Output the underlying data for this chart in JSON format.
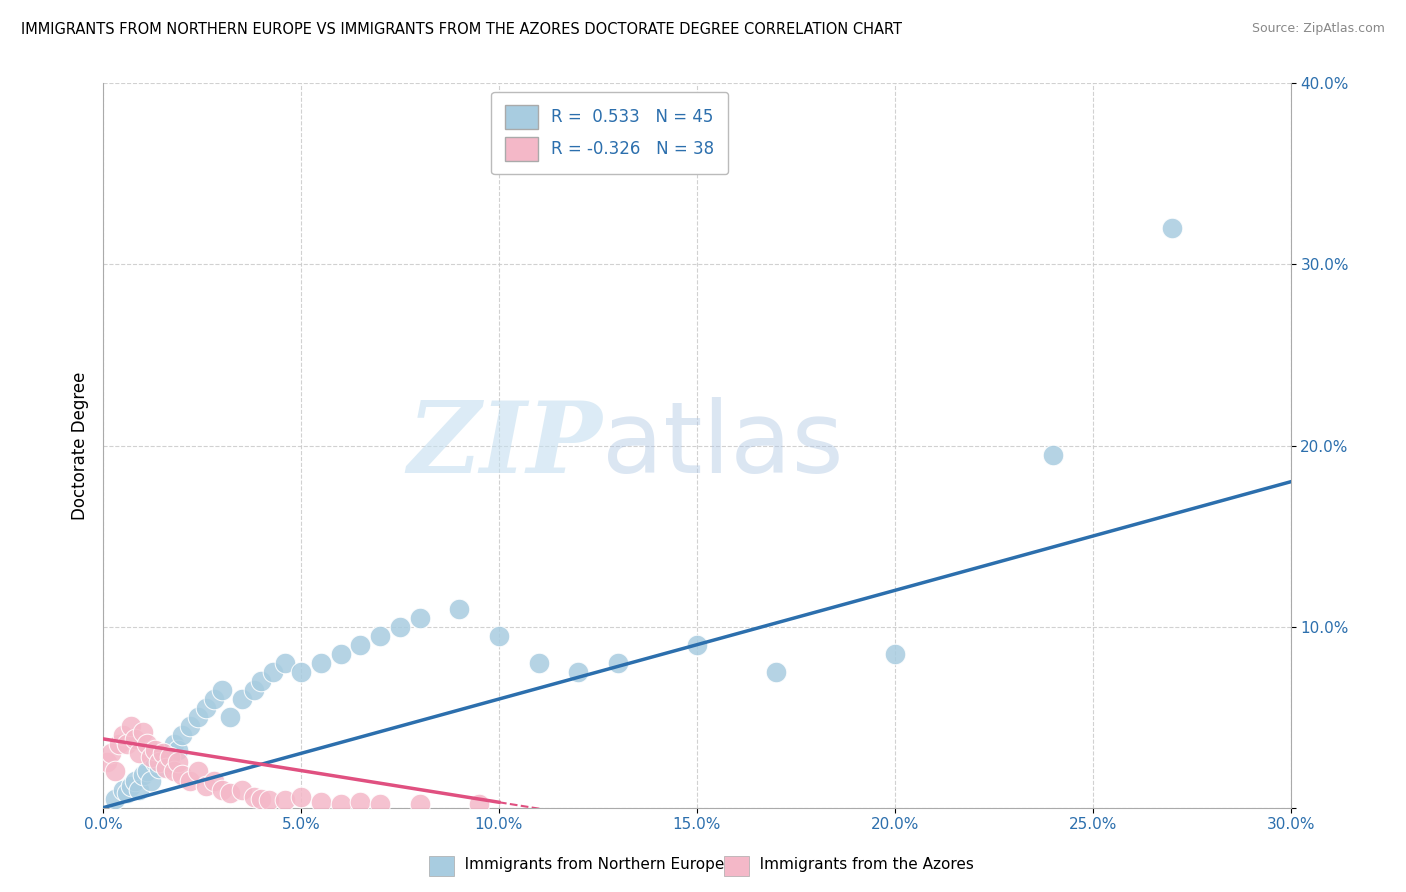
{
  "title": "IMMIGRANTS FROM NORTHERN EUROPE VS IMMIGRANTS FROM THE AZORES DOCTORATE DEGREE CORRELATION CHART",
  "source": "Source: ZipAtlas.com",
  "ylabel": "Doctorate Degree",
  "xlim": [
    0.0,
    0.3
  ],
  "ylim": [
    0.0,
    0.4
  ],
  "xticks": [
    0.0,
    0.05,
    0.1,
    0.15,
    0.2,
    0.25,
    0.3
  ],
  "yticks": [
    0.0,
    0.1,
    0.2,
    0.3,
    0.4
  ],
  "legend1_r": "0.533",
  "legend1_n": "45",
  "legend2_r": "-0.326",
  "legend2_n": "38",
  "blue_color": "#a8cce0",
  "pink_color": "#f4b8c8",
  "blue_line_color": "#2c6fad",
  "pink_line_color": "#e05080",
  "watermark_zip": "ZIP",
  "watermark_atlas": "atlas",
  "legend_label_blue": "Immigrants from Northern Europe",
  "legend_label_pink": "Immigrants from the Azores",
  "blue_x": [
    0.003,
    0.005,
    0.006,
    0.007,
    0.008,
    0.009,
    0.01,
    0.011,
    0.012,
    0.013,
    0.014,
    0.015,
    0.016,
    0.017,
    0.018,
    0.019,
    0.02,
    0.022,
    0.024,
    0.026,
    0.028,
    0.03,
    0.032,
    0.035,
    0.038,
    0.04,
    0.043,
    0.046,
    0.05,
    0.055,
    0.06,
    0.065,
    0.07,
    0.075,
    0.08,
    0.09,
    0.1,
    0.11,
    0.12,
    0.13,
    0.15,
    0.17,
    0.2,
    0.24,
    0.27
  ],
  "blue_y": [
    0.005,
    0.01,
    0.008,
    0.012,
    0.015,
    0.01,
    0.018,
    0.02,
    0.015,
    0.025,
    0.022,
    0.028,
    0.03,
    0.025,
    0.035,
    0.032,
    0.04,
    0.045,
    0.05,
    0.055,
    0.06,
    0.065,
    0.05,
    0.06,
    0.065,
    0.07,
    0.075,
    0.08,
    0.075,
    0.08,
    0.085,
    0.09,
    0.095,
    0.1,
    0.105,
    0.11,
    0.095,
    0.08,
    0.075,
    0.08,
    0.09,
    0.075,
    0.085,
    0.195,
    0.32
  ],
  "pink_x": [
    0.001,
    0.002,
    0.003,
    0.004,
    0.005,
    0.006,
    0.007,
    0.008,
    0.009,
    0.01,
    0.011,
    0.012,
    0.013,
    0.014,
    0.015,
    0.016,
    0.017,
    0.018,
    0.019,
    0.02,
    0.022,
    0.024,
    0.026,
    0.028,
    0.03,
    0.032,
    0.035,
    0.038,
    0.04,
    0.042,
    0.046,
    0.05,
    0.055,
    0.06,
    0.065,
    0.07,
    0.08,
    0.095
  ],
  "pink_y": [
    0.025,
    0.03,
    0.02,
    0.035,
    0.04,
    0.035,
    0.045,
    0.038,
    0.03,
    0.042,
    0.035,
    0.028,
    0.032,
    0.025,
    0.03,
    0.022,
    0.028,
    0.02,
    0.025,
    0.018,
    0.015,
    0.02,
    0.012,
    0.015,
    0.01,
    0.008,
    0.01,
    0.006,
    0.005,
    0.004,
    0.004,
    0.006,
    0.003,
    0.002,
    0.003,
    0.002,
    0.002,
    0.002
  ],
  "blue_intercept": 0.0,
  "blue_slope": 0.6,
  "pink_intercept": 0.038,
  "pink_slope": -0.35
}
